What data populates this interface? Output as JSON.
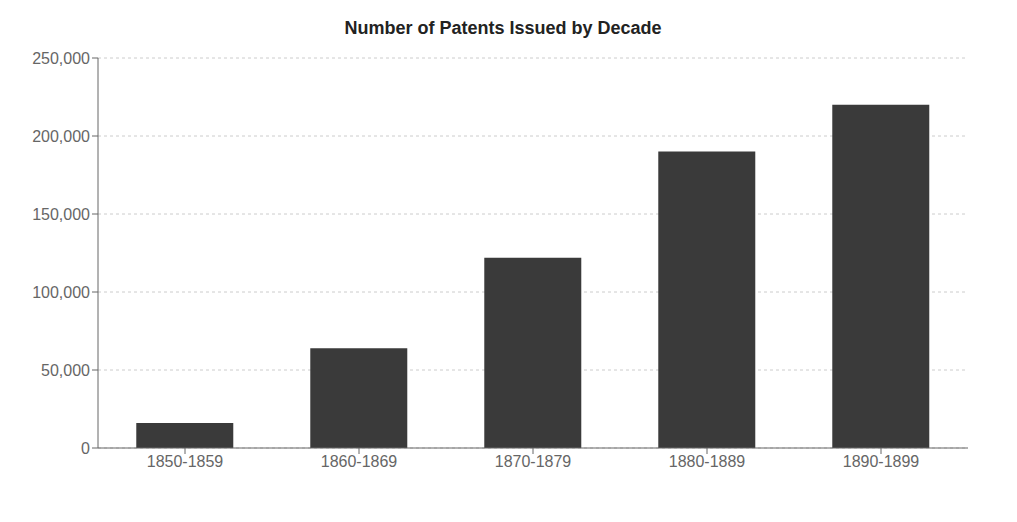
{
  "chart_data": {
    "type": "bar",
    "title": "Number of Patents Issued by Decade",
    "categories": [
      "1850-1859",
      "1860-1869",
      "1870-1879",
      "1880-1889",
      "1890-1899"
    ],
    "values": [
      16000,
      64000,
      122000,
      190000,
      220000
    ],
    "color": "#3a3a3a",
    "ylim": [
      0,
      250000
    ],
    "yticks": [
      0,
      {
        "value": 50000,
        "label": "50,000"
      },
      {
        "value": 100000,
        "label": "100,000"
      },
      {
        "value": 150000,
        "label": "150,000"
      },
      {
        "value": 200000,
        "label": "200,000"
      },
      {
        "value": 250000,
        "label": "250,000"
      }
    ],
    "grid": true
  }
}
